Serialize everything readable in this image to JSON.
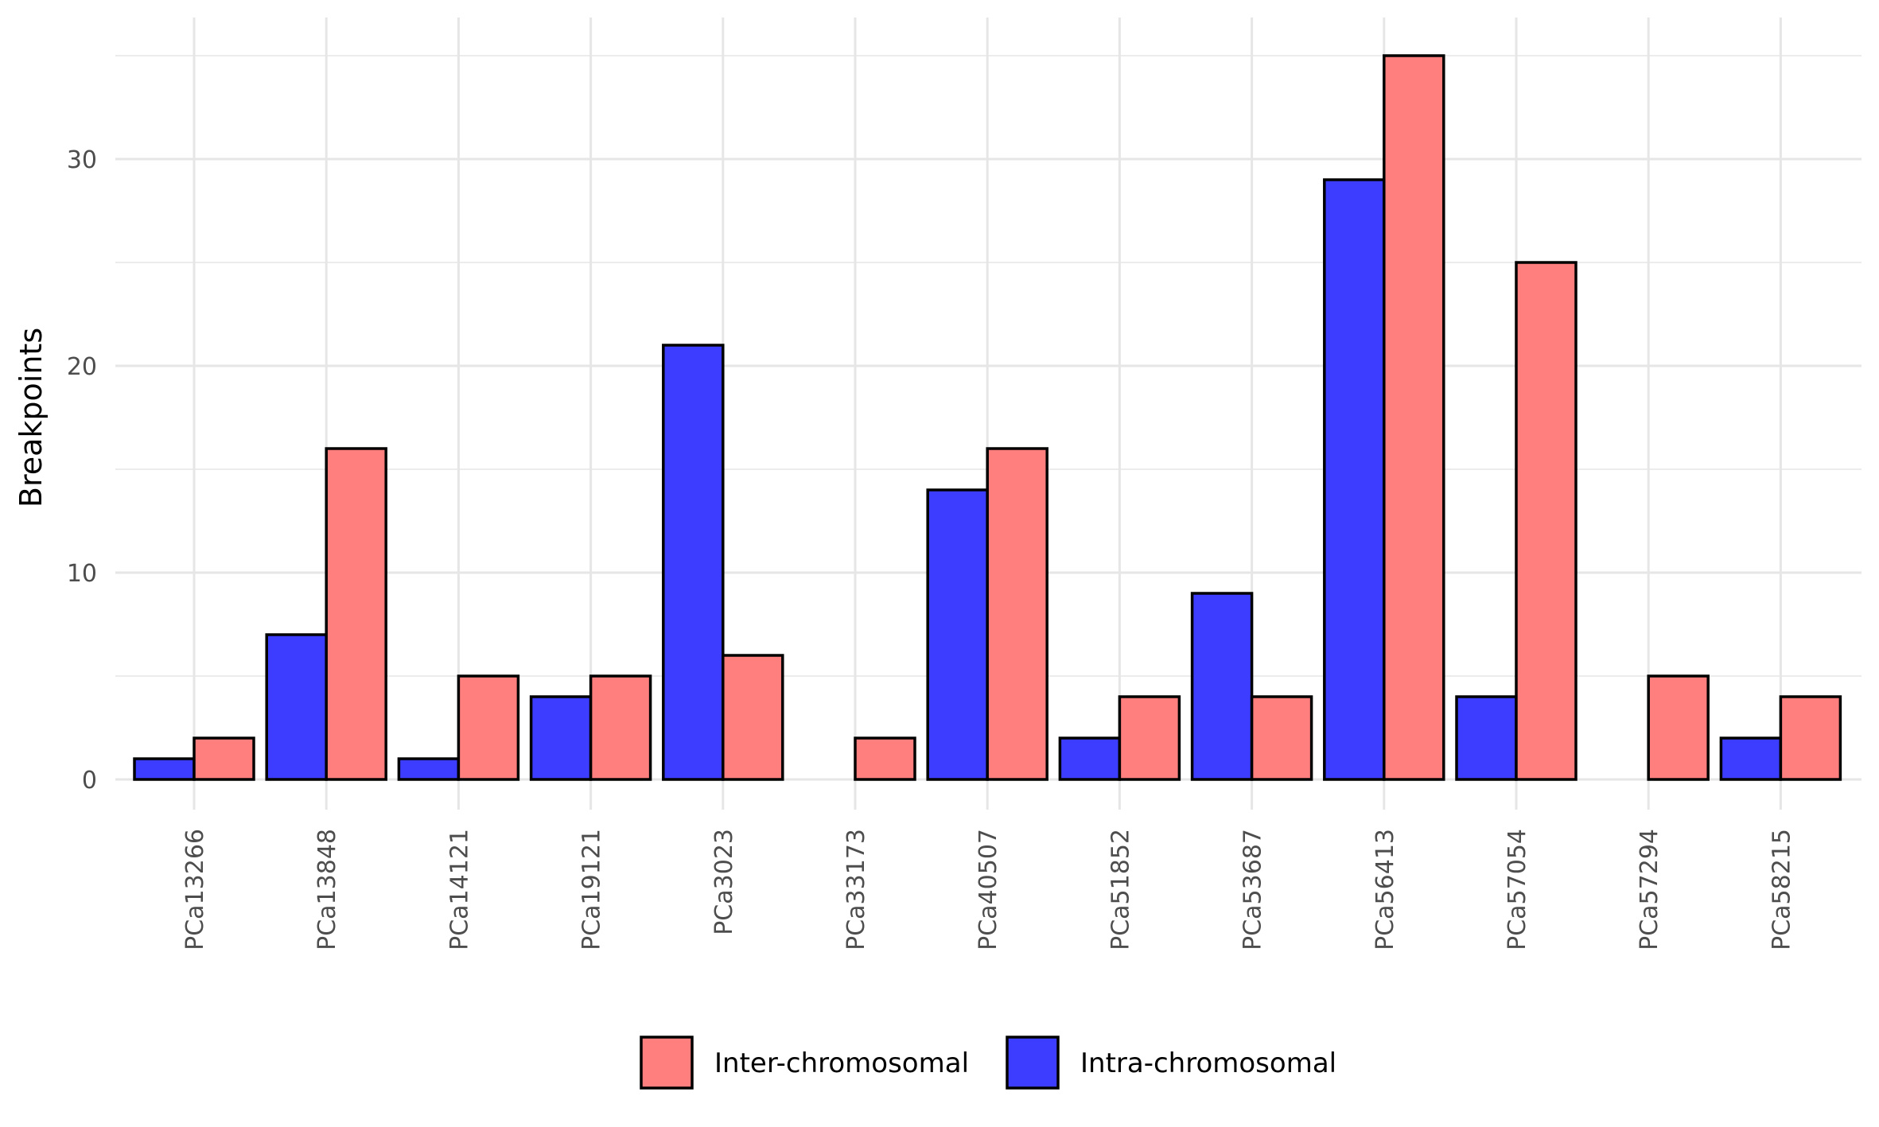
{
  "chart_data": {
    "type": "bar",
    "title": "",
    "xlabel": "",
    "ylabel": "Breakpoints",
    "ylim": [
      -1.3,
      35.8
    ],
    "y_ticks": [
      0,
      10,
      20,
      30
    ],
    "grid": true,
    "legend_position": "bottom",
    "categories": [
      "PCa13266",
      "PCa13848",
      "PCa14121",
      "PCa19121",
      "PCa3023",
      "PCa33173",
      "PCa40507",
      "PCa51852",
      "PCa53687",
      "PCa56413",
      "PCa57054",
      "PCa57294",
      "PCa58215"
    ],
    "series": [
      {
        "name": "Intra-chromosomal",
        "color": "#3d3dff",
        "values": [
          1,
          7,
          1,
          4,
          21,
          0,
          14,
          2,
          9,
          29,
          4,
          0,
          2
        ]
      },
      {
        "name": "Inter-chromosomal",
        "color": "#ff7f7f",
        "values": [
          2,
          16,
          5,
          5,
          6,
          2,
          16,
          4,
          4,
          35,
          25,
          5,
          4
        ]
      }
    ],
    "legend_order": [
      "Inter-chromosomal",
      "Intra-chromosomal"
    ]
  }
}
